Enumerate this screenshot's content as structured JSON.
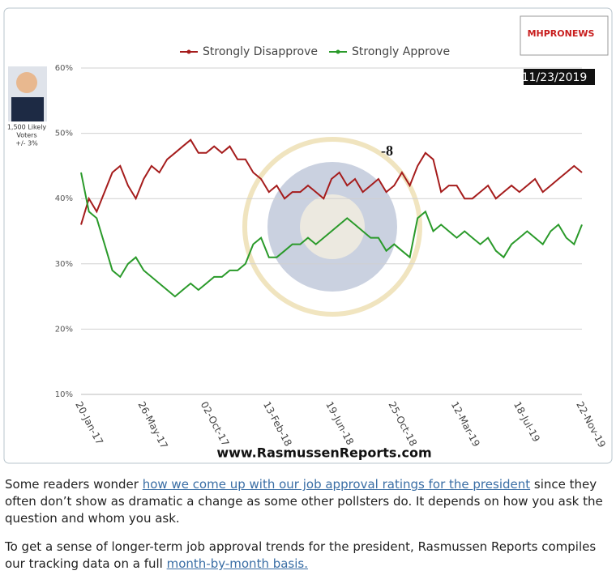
{
  "chart_data": {
    "type": "line",
    "legend_position": "top",
    "grid": true,
    "categories": [
      "20-Jan-17",
      null,
      null,
      null,
      null,
      null,
      null,
      null,
      "26-May-17",
      null,
      null,
      null,
      null,
      null,
      null,
      null,
      "02-Oct-17",
      null,
      null,
      null,
      null,
      null,
      null,
      null,
      "13-Feb-18",
      null,
      null,
      null,
      null,
      null,
      null,
      null,
      "19-Jun-18",
      null,
      null,
      null,
      null,
      null,
      null,
      null,
      "25-Oct-18",
      null,
      null,
      null,
      null,
      null,
      null,
      null,
      "12-Mar-19",
      null,
      null,
      null,
      null,
      null,
      null,
      null,
      "18-Jul-19",
      null,
      null,
      null,
      null,
      null,
      null,
      null,
      "22-Nov-19"
    ],
    "series": [
      {
        "name": "Strongly Disapprove",
        "color": "#a51c1c",
        "values": [
          36,
          40,
          38,
          41,
          44,
          45,
          42,
          40,
          43,
          45,
          44,
          46,
          47,
          48,
          49,
          47,
          47,
          48,
          47,
          48,
          46,
          46,
          44,
          43,
          41,
          42,
          40,
          41,
          41,
          42,
          41,
          40,
          43,
          44,
          42,
          43,
          41,
          42,
          43,
          41,
          42,
          44,
          42,
          45,
          47,
          46,
          41,
          42,
          42,
          40,
          40,
          41,
          42,
          40,
          41,
          42,
          41,
          42,
          43,
          41,
          42,
          43,
          44,
          45,
          44
        ]
      },
      {
        "name": "Strongly Approve",
        "color": "#2a9a2a",
        "values": [
          44,
          38,
          37,
          33,
          29,
          28,
          30,
          31,
          29,
          28,
          27,
          26,
          25,
          26,
          27,
          26,
          27,
          28,
          28,
          29,
          29,
          30,
          33,
          34,
          31,
          31,
          32,
          33,
          33,
          34,
          33,
          34,
          35,
          36,
          37,
          36,
          35,
          34,
          34,
          32,
          33,
          32,
          31,
          37,
          38,
          35,
          36,
          35,
          34,
          35,
          34,
          33,
          34,
          32,
          31,
          33,
          34,
          35,
          34,
          33,
          35,
          36,
          34,
          33,
          36
        ]
      }
    ],
    "ylim": [
      10,
      60
    ],
    "yticks": [
      {
        "value": 10,
        "label": "10%"
      },
      {
        "value": 20,
        "label": "20%"
      },
      {
        "value": 30,
        "label": "30%"
      },
      {
        "value": 40,
        "label": "40%"
      },
      {
        "value": 50,
        "label": "50%"
      },
      {
        "value": 60,
        "label": "60%"
      }
    ],
    "annotation": "-8",
    "date_label": "11/23/2019",
    "sample_note": [
      "1,500 Likely",
      "Voters",
      "+/- 3%"
    ],
    "logo": "MHPRONEWS",
    "source": "www.RasmussenReports.com"
  },
  "paragraphs": [
    [
      "Some readers wonder ",
      "how we come up with our job approval ratings for the president",
      " since they often don’t show as dramatic a change as some other pollsters do. It depends on how you ask the question and whom you ask."
    ],
    [
      "To get a sense of longer-term job approval trends for the president, Rasmussen Reports compiles our tracking data on a full ",
      "month-by-month basis."
    ]
  ]
}
